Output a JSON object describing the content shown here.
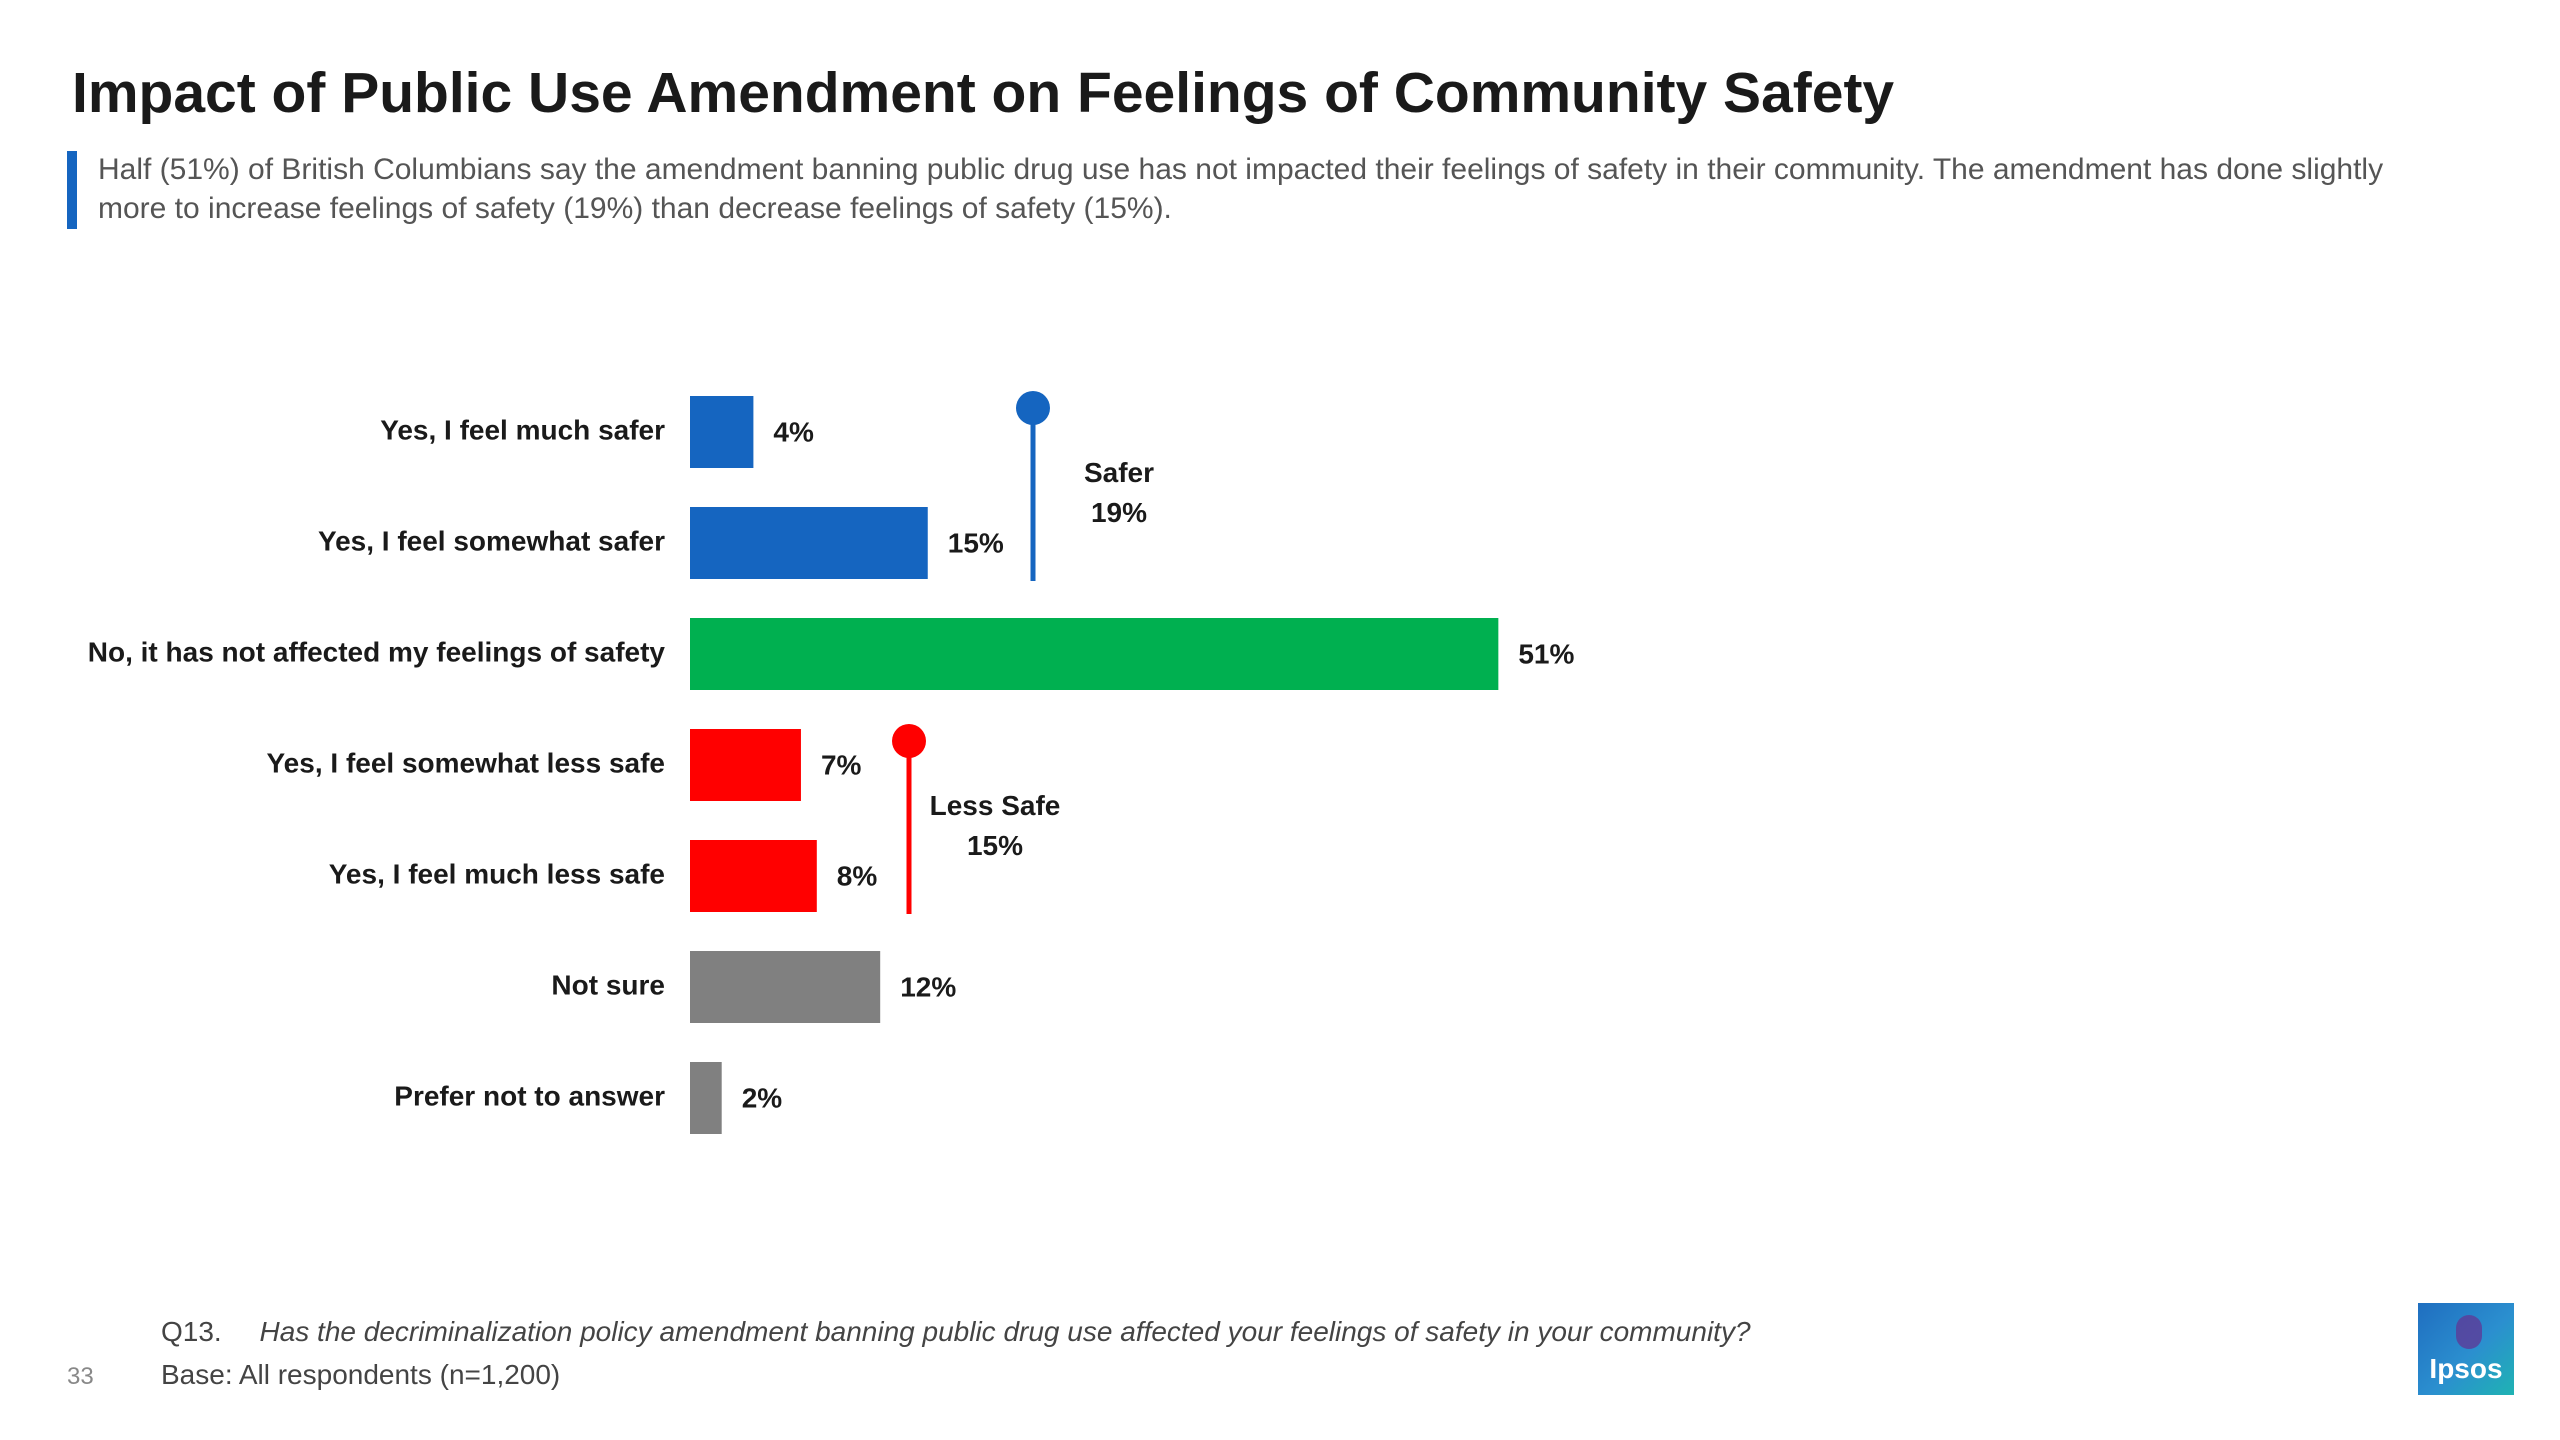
{
  "title": "Impact of Public Use Amendment on Feelings of Community Safety",
  "subtitle": "Half (51%) of British Columbians say the amendment banning public drug use has not impacted their feelings of safety in their community. The amendment has done slightly more to increase feelings of safety (19%) than decrease feelings of safety (15%).",
  "chart_data": {
    "type": "bar",
    "orientation": "horizontal",
    "categories": [
      "Yes, I feel much safer",
      "Yes, I feel somewhat safer",
      "No, it has not affected my feelings of safety",
      "Yes, I feel somewhat less safe",
      "Yes, I feel much less safe",
      "Not sure",
      "Prefer not to answer"
    ],
    "values": [
      4,
      15,
      51,
      7,
      8,
      12,
      2
    ],
    "value_labels": [
      "4%",
      "15%",
      "51%",
      "7%",
      "8%",
      "12%",
      "2%"
    ],
    "bar_colors": [
      "#1565c0",
      "#1565c0",
      "#00b050",
      "#ff0000",
      "#ff0000",
      "#808080",
      "#808080"
    ],
    "xlim": [
      0,
      100
    ],
    "grid": false,
    "nets": [
      {
        "label": "Safer",
        "value_label": "19%",
        "color": "#1565c0",
        "rows": [
          0,
          1
        ]
      },
      {
        "label": "Less Safe",
        "value_label": "15%",
        "color": "#ff0000",
        "rows": [
          3,
          4
        ]
      }
    ]
  },
  "footnote": {
    "question_number": "Q13.",
    "question": "Has the decriminalization policy amendment banning public drug use affected your feelings of safety in your community?",
    "base": "Base: All respondents (n=1,200)"
  },
  "page_number": "33",
  "logo_text": "Ipsos",
  "colors": {
    "accent": "#1565c0",
    "title": "#1a1a1a",
    "subtitle": "#555555"
  }
}
